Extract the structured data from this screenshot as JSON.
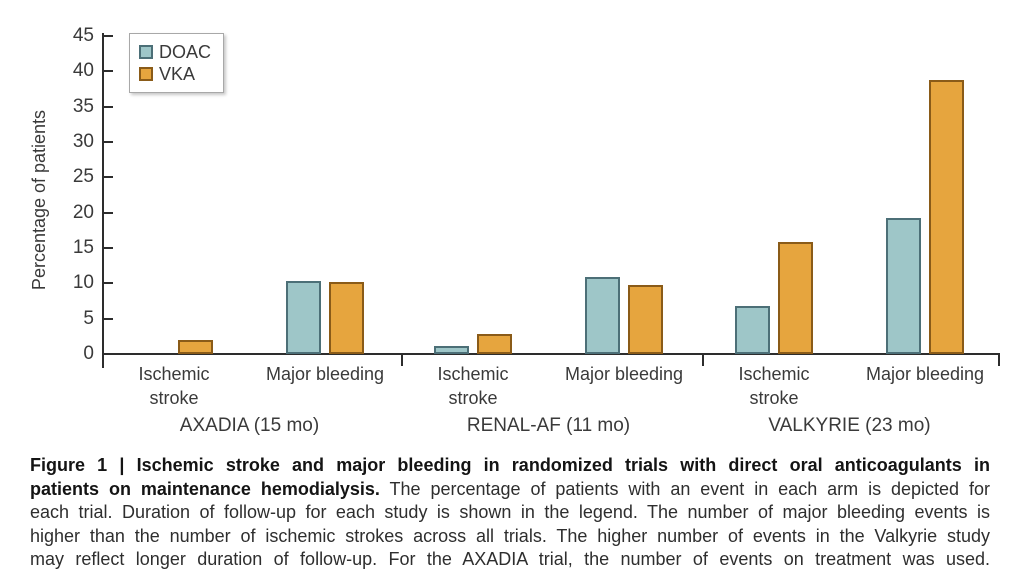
{
  "chart_data": {
    "type": "bar",
    "title": "",
    "xlabel": "",
    "ylabel": "Percentage of patients",
    "ylim": [
      0,
      45
    ],
    "yticks": [
      0,
      5,
      10,
      15,
      20,
      25,
      30,
      35,
      40,
      45
    ],
    "grid": false,
    "legend_position": "top-left",
    "axis_color": "#2d2d2d",
    "legend": [
      {
        "label": "DOAC",
        "color": "#9ec6c8",
        "border": "#4c6f77"
      },
      {
        "label": "VKA",
        "color": "#e6a53e",
        "border": "#8a5b18"
      }
    ],
    "groups": [
      {
        "trial": "AXADIA (15 mo)",
        "categories": [
          "Ischemic stroke",
          "Major bleeding"
        ],
        "series": [
          {
            "name": "DOAC",
            "values": [
              0,
              10.3
            ]
          },
          {
            "name": "VKA",
            "values": [
              2.0,
              10.2
            ]
          }
        ]
      },
      {
        "trial": "RENAL-AF (11 mo)",
        "categories": [
          "Ischemic stroke",
          "Major bleeding"
        ],
        "series": [
          {
            "name": "DOAC",
            "values": [
              1.1,
              10.9
            ]
          },
          {
            "name": "VKA",
            "values": [
              2.8,
              9.7
            ]
          }
        ]
      },
      {
        "trial": "VALKYRIE (23 mo)",
        "categories": [
          "Ischemic stroke",
          "Major bleeding"
        ],
        "series": [
          {
            "name": "DOAC",
            "values": [
              6.8,
              19.3
            ]
          },
          {
            "name": "VKA",
            "values": [
              15.9,
              38.8
            ]
          }
        ]
      }
    ]
  },
  "caption": {
    "lines": [
      {
        "bold": "Figure 1 | Ischemic stroke and major bleeding in randomized trials with direct oral anticoagulants in",
        "regular": ""
      },
      {
        "bold": "patients on maintenance hemodialysis.",
        "regular": " The percentage of patients with an event in each arm is depicted for"
      },
      {
        "bold": "",
        "regular": "each trial. Duration of follow-up for each study is shown in the legend. The number of major bleeding events is"
      },
      {
        "bold": "",
        "regular": "higher than the number of ischemic strokes across all trials. The higher number of events in the Valkyrie study"
      },
      {
        "bold": "",
        "regular": "may reflect longer duration of follow-up. For the AXADIA trial, the number of events on treatment was used."
      }
    ]
  }
}
